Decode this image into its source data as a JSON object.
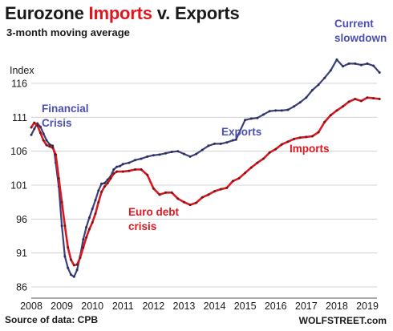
{
  "header": {
    "title_part1": "Eurozone",
    "title_imports": "Imports",
    "title_part2": "v. Exports",
    "subtitle": "3-month moving average"
  },
  "footer": {
    "source": "Source of data: CPB",
    "brand": "WOLFSTREET.com"
  },
  "colors": {
    "exports": "#3b3f7a",
    "imports": "#e0161f",
    "exports_annotation": "#4a4fb3",
    "imports_annotation": "#e0161f",
    "grid": "#c9c9c9"
  },
  "chart_data": {
    "type": "line",
    "title": "Eurozone Imports v. Exports",
    "subtitle": "3-month moving average",
    "xlabel": "",
    "ylabel": "Index",
    "xlim": [
      2008,
      2019.6
    ],
    "ylim": [
      86,
      118
    ],
    "x_ticks": [
      "2008",
      "2009",
      "2010",
      "2011",
      "2012",
      "2013",
      "2014",
      "2015",
      "2016",
      "2017",
      "2018",
      "2019"
    ],
    "y_ticks": [
      86,
      91,
      96,
      101,
      106,
      111,
      116
    ],
    "grid": "horizontal",
    "legend": "none (series labelled in chart)",
    "series": [
      {
        "name": "Exports",
        "points": [
          [
            2008.0,
            108.4
          ],
          [
            2008.1,
            109.3
          ],
          [
            2008.2,
            110.1
          ],
          [
            2008.3,
            109.6
          ],
          [
            2008.4,
            108.6
          ],
          [
            2008.5,
            107.6
          ],
          [
            2008.6,
            107.0
          ],
          [
            2008.7,
            106.8
          ],
          [
            2008.75,
            106.0
          ],
          [
            2008.8,
            104.3
          ],
          [
            2008.9,
            100.8
          ],
          [
            2009.0,
            95.0
          ],
          [
            2009.1,
            90.5
          ],
          [
            2009.2,
            88.8
          ],
          [
            2009.3,
            87.8
          ],
          [
            2009.4,
            87.5
          ],
          [
            2009.5,
            88.5
          ],
          [
            2009.6,
            90.5
          ],
          [
            2009.7,
            93.0
          ],
          [
            2009.8,
            94.8
          ],
          [
            2009.9,
            96.2
          ],
          [
            2010.0,
            97.5
          ],
          [
            2010.1,
            98.8
          ],
          [
            2010.2,
            100.2
          ],
          [
            2010.3,
            101.2
          ],
          [
            2010.4,
            101.3
          ],
          [
            2010.5,
            101.8
          ],
          [
            2010.6,
            102.3
          ],
          [
            2010.7,
            103.3
          ],
          [
            2010.8,
            103.7
          ],
          [
            2010.9,
            103.8
          ],
          [
            2011.0,
            104.1
          ],
          [
            2011.2,
            104.3
          ],
          [
            2011.4,
            104.7
          ],
          [
            2011.6,
            104.9
          ],
          [
            2011.8,
            105.2
          ],
          [
            2012.0,
            105.4
          ],
          [
            2012.2,
            105.5
          ],
          [
            2012.4,
            105.7
          ],
          [
            2012.6,
            105.9
          ],
          [
            2012.8,
            106.0
          ],
          [
            2013.0,
            105.6
          ],
          [
            2013.2,
            105.2
          ],
          [
            2013.4,
            105.6
          ],
          [
            2013.6,
            106.2
          ],
          [
            2013.8,
            106.8
          ],
          [
            2014.0,
            107.1
          ],
          [
            2014.2,
            107.1
          ],
          [
            2014.4,
            107.3
          ],
          [
            2014.6,
            107.6
          ],
          [
            2014.7,
            107.7
          ],
          [
            2015.0,
            110.6
          ],
          [
            2015.2,
            110.8
          ],
          [
            2015.4,
            110.9
          ],
          [
            2015.6,
            111.4
          ],
          [
            2015.8,
            111.9
          ],
          [
            2016.0,
            112.0
          ],
          [
            2016.2,
            112.0
          ],
          [
            2016.4,
            112.1
          ],
          [
            2016.6,
            112.6
          ],
          [
            2016.8,
            113.2
          ],
          [
            2017.0,
            113.9
          ],
          [
            2017.2,
            115.0
          ],
          [
            2017.4,
            115.8
          ],
          [
            2017.6,
            116.8
          ],
          [
            2017.8,
            117.9
          ],
          [
            2018.0,
            119.5
          ],
          [
            2018.2,
            118.5
          ],
          [
            2018.4,
            118.9
          ],
          [
            2018.6,
            118.9
          ],
          [
            2018.8,
            118.7
          ],
          [
            2019.0,
            118.9
          ],
          [
            2019.2,
            118.6
          ],
          [
            2019.4,
            117.6
          ]
        ]
      },
      {
        "name": "Imports",
        "points": [
          [
            2008.0,
            109.5
          ],
          [
            2008.1,
            110.2
          ],
          [
            2008.2,
            109.8
          ],
          [
            2008.3,
            108.7
          ],
          [
            2008.4,
            107.6
          ],
          [
            2008.5,
            106.9
          ],
          [
            2008.6,
            106.7
          ],
          [
            2008.7,
            106.5
          ],
          [
            2008.8,
            105.5
          ],
          [
            2008.9,
            102.0
          ],
          [
            2009.0,
            98.5
          ],
          [
            2009.1,
            95.0
          ],
          [
            2009.2,
            91.8
          ],
          [
            2009.3,
            90.0
          ],
          [
            2009.4,
            89.2
          ],
          [
            2009.5,
            89.3
          ],
          [
            2009.6,
            90.3
          ],
          [
            2009.7,
            91.8
          ],
          [
            2009.8,
            93.3
          ],
          [
            2009.9,
            94.5
          ],
          [
            2010.0,
            95.5
          ],
          [
            2010.1,
            96.8
          ],
          [
            2010.2,
            98.5
          ],
          [
            2010.3,
            100.0
          ],
          [
            2010.4,
            100.8
          ],
          [
            2010.5,
            101.3
          ],
          [
            2010.6,
            102.0
          ],
          [
            2010.7,
            102.7
          ],
          [
            2010.8,
            103.0
          ],
          [
            2011.0,
            103.0
          ],
          [
            2011.2,
            103.1
          ],
          [
            2011.4,
            103.3
          ],
          [
            2011.6,
            103.3
          ],
          [
            2011.8,
            102.5
          ],
          [
            2012.0,
            100.5
          ],
          [
            2012.2,
            99.6
          ],
          [
            2012.4,
            99.9
          ],
          [
            2012.6,
            99.9
          ],
          [
            2012.8,
            99.0
          ],
          [
            2013.0,
            98.5
          ],
          [
            2013.2,
            98.1
          ],
          [
            2013.4,
            98.4
          ],
          [
            2013.6,
            99.2
          ],
          [
            2013.8,
            99.6
          ],
          [
            2014.0,
            100.1
          ],
          [
            2014.2,
            100.4
          ],
          [
            2014.4,
            100.6
          ],
          [
            2014.6,
            101.6
          ],
          [
            2014.8,
            102.0
          ],
          [
            2015.0,
            102.8
          ],
          [
            2015.2,
            103.6
          ],
          [
            2015.4,
            104.3
          ],
          [
            2015.6,
            104.9
          ],
          [
            2015.8,
            105.8
          ],
          [
            2016.0,
            106.3
          ],
          [
            2016.2,
            107.0
          ],
          [
            2016.4,
            107.4
          ],
          [
            2016.6,
            107.8
          ],
          [
            2016.8,
            108.0
          ],
          [
            2017.0,
            108.1
          ],
          [
            2017.2,
            108.2
          ],
          [
            2017.4,
            108.8
          ],
          [
            2017.6,
            110.3
          ],
          [
            2017.8,
            111.3
          ],
          [
            2018.0,
            112.0
          ],
          [
            2018.2,
            112.6
          ],
          [
            2018.4,
            113.3
          ],
          [
            2018.6,
            113.7
          ],
          [
            2018.8,
            113.4
          ],
          [
            2019.0,
            113.9
          ],
          [
            2019.2,
            113.8
          ],
          [
            2019.4,
            113.7
          ]
        ]
      }
    ],
    "annotations": [
      {
        "text": "Financial",
        "series": "Exports"
      },
      {
        "text": "Crisis",
        "series": "Exports"
      },
      {
        "text": "Exports",
        "series": "Exports"
      },
      {
        "text": "Imports",
        "series": "Imports"
      },
      {
        "text": "Euro debt",
        "series": "Imports"
      },
      {
        "text": "crisis",
        "series": "Imports"
      },
      {
        "text": "Current",
        "series": "Exports"
      },
      {
        "text": "slowdown",
        "series": "Exports"
      }
    ]
  }
}
